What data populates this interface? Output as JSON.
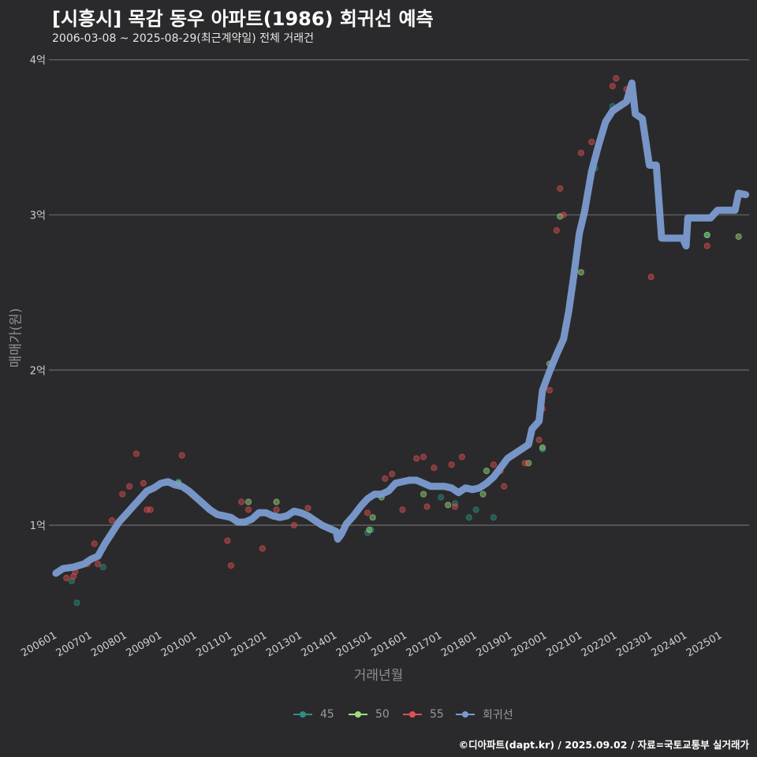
{
  "header": {
    "title": "[시흥시] 목감 동우 아파트(1986) 회귀선 예측",
    "subtitle": "2006-03-08 ~ 2025-08-29(최근계약일) 전체 거래건"
  },
  "caption": "©디아파트(dapt.kr) / 2025.09.02 / 자료=국토교통부 실거래가",
  "chart_data": {
    "type": "scatter",
    "title": "[시흥시] 목감 동우 아파트(1986) 회귀선 예측",
    "xlabel": "거래년월",
    "ylabel": "매매가(원)",
    "xlim": [
      2005.8,
      2025.8
    ],
    "ylim": [
      0.37,
      4.08
    ],
    "x_ticks": [
      {
        "value": 2006.0,
        "label": "200601"
      },
      {
        "value": 2007.0,
        "label": "200701"
      },
      {
        "value": 2008.0,
        "label": "200801"
      },
      {
        "value": 2009.0,
        "label": "200901"
      },
      {
        "value": 2010.0,
        "label": "201001"
      },
      {
        "value": 2011.0,
        "label": "201101"
      },
      {
        "value": 2012.0,
        "label": "201201"
      },
      {
        "value": 2013.0,
        "label": "201301"
      },
      {
        "value": 2014.0,
        "label": "201401"
      },
      {
        "value": 2015.0,
        "label": "201501"
      },
      {
        "value": 2016.0,
        "label": "201601"
      },
      {
        "value": 2017.0,
        "label": "201701"
      },
      {
        "value": 2018.0,
        "label": "201801"
      },
      {
        "value": 2019.0,
        "label": "201901"
      },
      {
        "value": 2020.0,
        "label": "202001"
      },
      {
        "value": 2021.0,
        "label": "202101"
      },
      {
        "value": 2022.0,
        "label": "202201"
      },
      {
        "value": 2023.0,
        "label": "202301"
      },
      {
        "value": 2024.0,
        "label": "202401"
      },
      {
        "value": 2025.0,
        "label": "202501"
      }
    ],
    "y_ticks": [
      {
        "value": 1,
        "label": "1억"
      },
      {
        "value": 2,
        "label": "2억"
      },
      {
        "value": 3,
        "label": "3억"
      },
      {
        "value": 4,
        "label": "4억"
      }
    ],
    "legend": {
      "position": "bottom",
      "items": [
        {
          "name": "45",
          "color": "#2e8f86",
          "marker": "line-point"
        },
        {
          "name": "50",
          "color": "#9be07a",
          "marker": "line-point"
        },
        {
          "name": "55",
          "color": "#e05050",
          "marker": "line-point"
        },
        {
          "name": "회귀선",
          "color": "#7b9bd0",
          "marker": "line-point"
        }
      ]
    },
    "series": [
      {
        "name": "45",
        "color": "#2e8f86",
        "points": [
          [
            2006.45,
            0.64
          ],
          [
            2006.6,
            0.5
          ],
          [
            2007.35,
            0.73
          ],
          [
            2009.5,
            1.28
          ],
          [
            2014.9,
            0.95
          ],
          [
            2015.0,
            0.97
          ],
          [
            2017.0,
            1.18
          ],
          [
            2017.4,
            1.14
          ],
          [
            2017.8,
            1.05
          ],
          [
            2018.0,
            1.1
          ],
          [
            2018.5,
            1.05
          ],
          [
            2019.9,
            1.49
          ],
          [
            2021.4,
            3.3
          ],
          [
            2021.9,
            3.7
          ],
          [
            2024.6,
            2.87
          ]
        ]
      },
      {
        "name": "50",
        "color": "#9be07a",
        "points": [
          [
            2009.5,
            1.27
          ],
          [
            2011.5,
            1.15
          ],
          [
            2012.3,
            1.15
          ],
          [
            2014.95,
            0.97
          ],
          [
            2015.05,
            1.05
          ],
          [
            2015.3,
            1.18
          ],
          [
            2016.5,
            1.2
          ],
          [
            2017.2,
            1.13
          ],
          [
            2018.2,
            1.2
          ],
          [
            2018.3,
            1.35
          ],
          [
            2019.5,
            1.4
          ],
          [
            2019.9,
            1.5
          ],
          [
            2020.1,
            2.04
          ],
          [
            2020.4,
            2.99
          ],
          [
            2021.0,
            2.63
          ],
          [
            2024.6,
            2.87
          ],
          [
            2025.5,
            2.86
          ]
        ]
      },
      {
        "name": "55",
        "color": "#e05050",
        "points": [
          [
            2006.3,
            0.66
          ],
          [
            2006.5,
            0.67
          ],
          [
            2006.55,
            0.7
          ],
          [
            2006.9,
            0.75
          ],
          [
            2007.1,
            0.88
          ],
          [
            2007.2,
            0.75
          ],
          [
            2007.6,
            1.03
          ],
          [
            2007.9,
            1.2
          ],
          [
            2008.1,
            1.25
          ],
          [
            2008.3,
            1.46
          ],
          [
            2008.6,
            1.1
          ],
          [
            2008.7,
            1.1
          ],
          [
            2008.5,
            1.27
          ],
          [
            2009.6,
            1.45
          ],
          [
            2010.9,
            0.9
          ],
          [
            2011.0,
            0.74
          ],
          [
            2011.3,
            1.15
          ],
          [
            2011.5,
            1.1
          ],
          [
            2011.9,
            0.85
          ],
          [
            2012.3,
            1.1
          ],
          [
            2012.8,
            1.0
          ],
          [
            2013.2,
            1.11
          ],
          [
            2014.9,
            1.08
          ],
          [
            2015.4,
            1.3
          ],
          [
            2015.6,
            1.33
          ],
          [
            2015.9,
            1.1
          ],
          [
            2016.3,
            1.43
          ],
          [
            2016.5,
            1.44
          ],
          [
            2016.6,
            1.12
          ],
          [
            2016.8,
            1.37
          ],
          [
            2017.3,
            1.39
          ],
          [
            2017.6,
            1.44
          ],
          [
            2017.4,
            1.12
          ],
          [
            2018.5,
            1.39
          ],
          [
            2018.7,
            1.35
          ],
          [
            2018.8,
            1.25
          ],
          [
            2019.4,
            1.4
          ],
          [
            2019.8,
            1.55
          ],
          [
            2019.9,
            1.75
          ],
          [
            2020.3,
            2.9
          ],
          [
            2020.4,
            3.17
          ],
          [
            2020.5,
            3.0
          ],
          [
            2020.1,
            1.87
          ],
          [
            2021.0,
            3.4
          ],
          [
            2021.3,
            3.47
          ],
          [
            2021.9,
            3.83
          ],
          [
            2022.0,
            3.88
          ],
          [
            2022.3,
            3.81
          ],
          [
            2023.0,
            2.6
          ],
          [
            2024.6,
            2.8
          ]
        ]
      },
      {
        "name": "회귀선",
        "color": "#7b9bd0",
        "type": "line",
        "points": [
          [
            2006.0,
            0.69
          ],
          [
            2006.2,
            0.72
          ],
          [
            2006.5,
            0.73
          ],
          [
            2006.8,
            0.75
          ],
          [
            2007.0,
            0.78
          ],
          [
            2007.2,
            0.8
          ],
          [
            2007.4,
            0.88
          ],
          [
            2007.6,
            0.95
          ],
          [
            2007.8,
            1.02
          ],
          [
            2008.0,
            1.07
          ],
          [
            2008.2,
            1.12
          ],
          [
            2008.4,
            1.17
          ],
          [
            2008.6,
            1.22
          ],
          [
            2008.8,
            1.24
          ],
          [
            2009.0,
            1.27
          ],
          [
            2009.2,
            1.28
          ],
          [
            2009.4,
            1.26
          ],
          [
            2009.6,
            1.25
          ],
          [
            2009.8,
            1.22
          ],
          [
            2010.0,
            1.18
          ],
          [
            2010.2,
            1.14
          ],
          [
            2010.4,
            1.1
          ],
          [
            2010.6,
            1.07
          ],
          [
            2010.8,
            1.06
          ],
          [
            2011.0,
            1.05
          ],
          [
            2011.2,
            1.02
          ],
          [
            2011.4,
            1.02
          ],
          [
            2011.6,
            1.04
          ],
          [
            2011.8,
            1.08
          ],
          [
            2012.0,
            1.08
          ],
          [
            2012.2,
            1.06
          ],
          [
            2012.4,
            1.05
          ],
          [
            2012.6,
            1.06
          ],
          [
            2012.8,
            1.09
          ],
          [
            2013.0,
            1.08
          ],
          [
            2013.2,
            1.06
          ],
          [
            2013.4,
            1.03
          ],
          [
            2013.6,
            1.0
          ],
          [
            2013.8,
            0.98
          ],
          [
            2014.0,
            0.96
          ],
          [
            2014.05,
            0.91
          ],
          [
            2014.15,
            0.94
          ],
          [
            2014.3,
            1.01
          ],
          [
            2014.5,
            1.06
          ],
          [
            2014.7,
            1.12
          ],
          [
            2014.9,
            1.17
          ],
          [
            2015.1,
            1.2
          ],
          [
            2015.3,
            1.2
          ],
          [
            2015.5,
            1.22
          ],
          [
            2015.7,
            1.27
          ],
          [
            2015.9,
            1.28
          ],
          [
            2016.1,
            1.29
          ],
          [
            2016.3,
            1.29
          ],
          [
            2016.5,
            1.27
          ],
          [
            2016.7,
            1.25
          ],
          [
            2016.9,
            1.25
          ],
          [
            2017.1,
            1.25
          ],
          [
            2017.3,
            1.24
          ],
          [
            2017.5,
            1.21
          ],
          [
            2017.7,
            1.24
          ],
          [
            2017.9,
            1.23
          ],
          [
            2018.1,
            1.24
          ],
          [
            2018.3,
            1.27
          ],
          [
            2018.5,
            1.31
          ],
          [
            2018.7,
            1.37
          ],
          [
            2018.9,
            1.43
          ],
          [
            2019.1,
            1.46
          ],
          [
            2019.3,
            1.49
          ],
          [
            2019.5,
            1.52
          ],
          [
            2019.6,
            1.62
          ],
          [
            2019.8,
            1.67
          ],
          [
            2019.9,
            1.87
          ],
          [
            2020.1,
            1.99
          ],
          [
            2020.3,
            2.1
          ],
          [
            2020.5,
            2.2
          ],
          [
            2020.65,
            2.38
          ],
          [
            2020.8,
            2.62
          ],
          [
            2020.95,
            2.88
          ],
          [
            2021.1,
            3.02
          ],
          [
            2021.3,
            3.28
          ],
          [
            2021.5,
            3.45
          ],
          [
            2021.7,
            3.6
          ],
          [
            2021.9,
            3.67
          ],
          [
            2022.1,
            3.7
          ],
          [
            2022.3,
            3.73
          ],
          [
            2022.45,
            3.85
          ],
          [
            2022.55,
            3.65
          ],
          [
            2022.75,
            3.62
          ],
          [
            2022.95,
            3.32
          ],
          [
            2023.15,
            3.32
          ],
          [
            2023.3,
            2.85
          ],
          [
            2023.6,
            2.85
          ],
          [
            2023.9,
            2.85
          ],
          [
            2024.0,
            2.8
          ],
          [
            2024.05,
            2.98
          ],
          [
            2024.4,
            2.98
          ],
          [
            2024.7,
            2.98
          ],
          [
            2024.9,
            3.03
          ],
          [
            2025.2,
            3.03
          ],
          [
            2025.4,
            3.03
          ],
          [
            2025.5,
            3.14
          ],
          [
            2025.7,
            3.13
          ]
        ]
      }
    ]
  }
}
